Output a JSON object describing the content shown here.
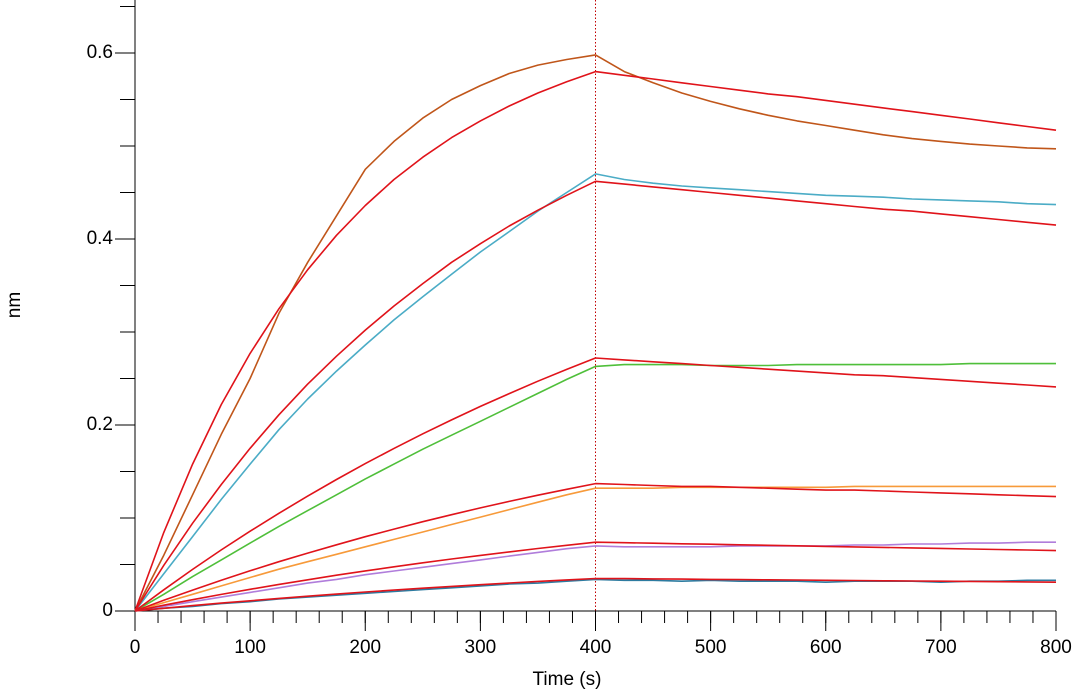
{
  "chart_data": {
    "type": "line",
    "xlabel": "Time (s)",
    "ylabel": "nm",
    "xlim": [
      0,
      800
    ],
    "ylim": [
      0,
      0.657
    ],
    "xticks": [
      0,
      100,
      200,
      300,
      400,
      500,
      600,
      700,
      800
    ],
    "yticks": [
      0,
      0.2,
      0.4,
      0.6
    ],
    "xminor_ticks": [
      0,
      20,
      40,
      60,
      80,
      100,
      120,
      140,
      160,
      180,
      200,
      220,
      240,
      260,
      280,
      300,
      320,
      340,
      360,
      380,
      400,
      420,
      440,
      460,
      480,
      500,
      520,
      540,
      560,
      580,
      600,
      620,
      640,
      660,
      680,
      700,
      720,
      740,
      760,
      780,
      800
    ],
    "yminor_ticks": [
      0,
      0.05,
      0.1,
      0.15,
      0.2,
      0.25,
      0.3,
      0.35,
      0.4,
      0.45,
      0.5,
      0.55,
      0.6,
      0.65
    ],
    "vline": {
      "x": 400,
      "color": "#c00000"
    },
    "x": [
      0,
      25,
      50,
      75,
      100,
      125,
      150,
      175,
      200,
      225,
      250,
      275,
      300,
      325,
      350,
      375,
      400,
      425,
      450,
      475,
      500,
      525,
      550,
      575,
      600,
      625,
      650,
      675,
      700,
      725,
      750,
      775,
      800
    ],
    "series": [
      {
        "color": "#c0561a",
        "values": [
          0,
          0.06,
          0.125,
          0.19,
          0.25,
          0.32,
          0.375,
          0.425,
          0.475,
          0.505,
          0.53,
          0.55,
          0.565,
          0.578,
          0.587,
          0.593,
          0.598,
          0.58,
          0.568,
          0.557,
          0.548,
          0.54,
          0.533,
          0.527,
          0.522,
          0.517,
          0.512,
          0.508,
          0.505,
          0.502,
          0.5,
          0.498,
          0.497
        ]
      },
      {
        "color": "#e0131a",
        "values": [
          0,
          0.0845,
          0.158,
          0.222,
          0.277,
          0.325,
          0.367,
          0.404,
          0.436,
          0.464,
          0.488,
          0.509,
          0.527,
          0.543,
          0.557,
          0.569,
          0.58,
          0.576,
          0.572,
          0.568,
          0.564,
          0.56,
          0.556,
          0.553,
          0.549,
          0.545,
          0.541,
          0.537,
          0.533,
          0.529,
          0.525,
          0.521,
          0.517
        ]
      },
      {
        "color": "#4bacc6",
        "values": [
          0,
          0.04,
          0.08,
          0.12,
          0.158,
          0.195,
          0.228,
          0.258,
          0.286,
          0.313,
          0.338,
          0.362,
          0.386,
          0.408,
          0.43,
          0.45,
          0.47,
          0.464,
          0.46,
          0.457,
          0.455,
          0.453,
          0.451,
          0.449,
          0.447,
          0.446,
          0.445,
          0.443,
          0.442,
          0.441,
          0.44,
          0.438,
          0.437
        ]
      },
      {
        "color": "#e0131a",
        "values": [
          0,
          0.0491,
          0.0944,
          0.136,
          0.175,
          0.211,
          0.244,
          0.274,
          0.302,
          0.328,
          0.352,
          0.375,
          0.395,
          0.414,
          0.431,
          0.447,
          0.462,
          0.459,
          0.456,
          0.453,
          0.45,
          0.447,
          0.444,
          0.441,
          0.438,
          0.435,
          0.432,
          0.43,
          0.427,
          0.424,
          0.421,
          0.418,
          0.415
        ]
      },
      {
        "color": "#4fbf3a",
        "values": [
          0,
          0.018,
          0.037,
          0.055,
          0.073,
          0.091,
          0.108,
          0.125,
          0.142,
          0.158,
          0.174,
          0.189,
          0.204,
          0.219,
          0.234,
          0.249,
          0.263,
          0.265,
          0.265,
          0.265,
          0.264,
          0.264,
          0.264,
          0.265,
          0.265,
          0.265,
          0.265,
          0.265,
          0.265,
          0.266,
          0.266,
          0.266,
          0.266
        ]
      },
      {
        "color": "#e0131a",
        "values": [
          0,
          0.0228,
          0.0447,
          0.0657,
          0.0858,
          0.1051,
          0.1236,
          0.1414,
          0.1585,
          0.1748,
          0.1905,
          0.2055,
          0.22,
          0.2338,
          0.2471,
          0.2598,
          0.272,
          0.27,
          0.268,
          0.266,
          0.264,
          0.262,
          0.26,
          0.258,
          0.256,
          0.254,
          0.253,
          0.251,
          0.249,
          0.247,
          0.245,
          0.243,
          0.241
        ]
      },
      {
        "color": "#f79a3a",
        "values": [
          0,
          0.009,
          0.018,
          0.027,
          0.036,
          0.045,
          0.053,
          0.061,
          0.069,
          0.077,
          0.085,
          0.093,
          0.101,
          0.109,
          0.117,
          0.125,
          0.132,
          0.132,
          0.132,
          0.133,
          0.133,
          0.133,
          0.133,
          0.133,
          0.133,
          0.134,
          0.134,
          0.134,
          0.134,
          0.134,
          0.134,
          0.134,
          0.134
        ]
      },
      {
        "color": "#e0131a",
        "values": [
          0,
          0.0115,
          0.0225,
          0.0331,
          0.0432,
          0.053,
          0.0623,
          0.0712,
          0.0799,
          0.0881,
          0.096,
          0.1036,
          0.1109,
          0.1178,
          0.1245,
          0.1309,
          0.137,
          0.136,
          0.135,
          0.134,
          0.134,
          0.133,
          0.132,
          0.131,
          0.13,
          0.13,
          0.129,
          0.128,
          0.127,
          0.126,
          0.125,
          0.124,
          0.123
        ]
      },
      {
        "color": "#b07ddb",
        "values": [
          0,
          0.005,
          0.01,
          0.015,
          0.02,
          0.025,
          0.03,
          0.034,
          0.039,
          0.043,
          0.047,
          0.051,
          0.055,
          0.059,
          0.063,
          0.067,
          0.07,
          0.069,
          0.069,
          0.069,
          0.069,
          0.07,
          0.07,
          0.07,
          0.07,
          0.071,
          0.071,
          0.072,
          0.072,
          0.073,
          0.073,
          0.074,
          0.074
        ]
      },
      {
        "color": "#e0131a",
        "values": [
          0,
          0.0062,
          0.0122,
          0.0179,
          0.0233,
          0.0286,
          0.0336,
          0.0385,
          0.0431,
          0.0475,
          0.0518,
          0.0559,
          0.0598,
          0.0636,
          0.0672,
          0.0707,
          0.074,
          0.0734,
          0.0729,
          0.0723,
          0.0718,
          0.0712,
          0.0706,
          0.0701,
          0.0695,
          0.0689,
          0.0684,
          0.0678,
          0.0673,
          0.0667,
          0.0661,
          0.0656,
          0.065
        ]
      },
      {
        "color": "#2d7ba0",
        "values": [
          0,
          0.003,
          0.005,
          0.008,
          0.01,
          0.013,
          0.015,
          0.017,
          0.019,
          0.021,
          0.023,
          0.025,
          0.027,
          0.029,
          0.03,
          0.032,
          0.034,
          0.033,
          0.033,
          0.032,
          0.033,
          0.032,
          0.032,
          0.032,
          0.031,
          0.032,
          0.032,
          0.032,
          0.031,
          0.032,
          0.032,
          0.033,
          0.033
        ]
      },
      {
        "color": "#e0131a",
        "values": [
          0,
          0.0029,
          0.0058,
          0.0085,
          0.011,
          0.0135,
          0.0159,
          0.0182,
          0.0204,
          0.0225,
          0.0245,
          0.0264,
          0.0283,
          0.0301,
          0.0318,
          0.0334,
          0.035,
          0.0348,
          0.0345,
          0.0343,
          0.034,
          0.0338,
          0.0335,
          0.0333,
          0.033,
          0.0328,
          0.0325,
          0.0323,
          0.032,
          0.0318,
          0.0315,
          0.0313,
          0.031
        ]
      }
    ]
  }
}
